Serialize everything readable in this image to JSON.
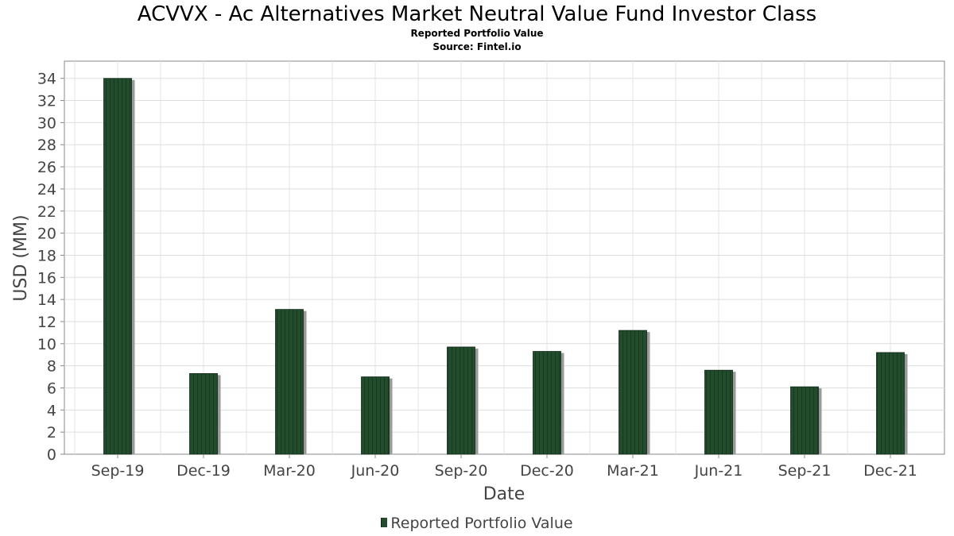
{
  "chart_data": {
    "type": "bar",
    "title": "ACVVX - Ac Alternatives Market Neutral Value Fund Investor Class",
    "subtitle": "Reported Portfolio Value",
    "source": "Source: Fintel.io",
    "xlabel": "Date",
    "ylabel": "USD (MM)",
    "ylim": [
      0,
      35
    ],
    "yticks": [
      0,
      2,
      4,
      6,
      8,
      10,
      12,
      14,
      16,
      18,
      20,
      22,
      24,
      26,
      28,
      30,
      32,
      34
    ],
    "grid": true,
    "legend_position": "bottom",
    "categories": [
      "Sep-19",
      "Dec-19",
      "Mar-20",
      "Jun-20",
      "Sep-20",
      "Dec-20",
      "Mar-21",
      "Jun-21",
      "Sep-21",
      "Dec-21"
    ],
    "series": [
      {
        "name": "Reported Portfolio Value",
        "color": "#224c2c",
        "values": [
          34.0,
          7.3,
          13.1,
          7.0,
          9.7,
          9.3,
          11.2,
          7.6,
          6.1,
          9.2
        ]
      }
    ]
  }
}
